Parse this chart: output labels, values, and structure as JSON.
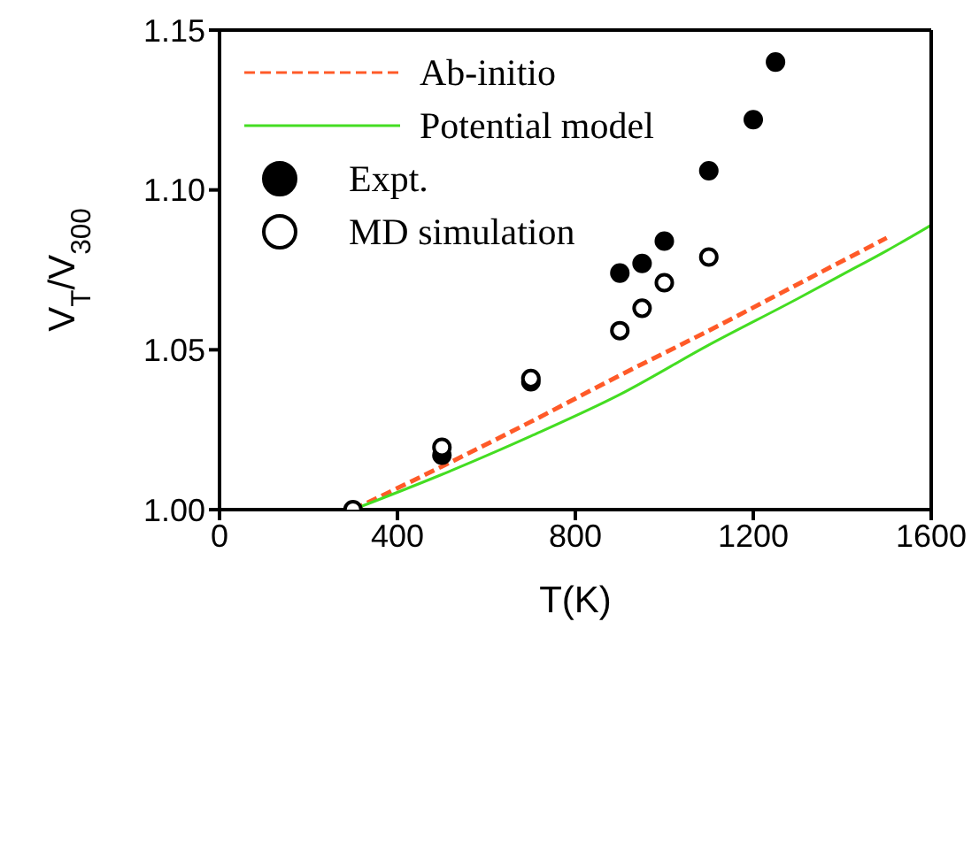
{
  "chart_data": {
    "type": "line",
    "xlabel": "T(K)",
    "ylabel": "V$_{T}$/V$_{300}$",
    "xlim": [
      0,
      1600
    ],
    "xticks": [
      0,
      400,
      800,
      1200,
      1600
    ],
    "ylim": [
      1.0,
      1.15
    ],
    "yticks": [
      {
        "value": 1.0,
        "label": "1.00"
      },
      {
        "value": 1.05,
        "label": "1.05"
      },
      {
        "value": 1.1,
        "label": "1.10"
      },
      {
        "value": 1.15,
        "label": "1.15"
      }
    ],
    "grid": false,
    "legend": "top left",
    "series": [
      {
        "name": "Ab-initio",
        "line_style": "dashed",
        "marker": "none",
        "color": "#ff5a28",
        "x": [
          300,
          500,
          700,
          900,
          1100,
          1300,
          1500
        ],
        "values": [
          1.0,
          1.0135,
          1.0275,
          1.042,
          1.056,
          1.0705,
          1.085
        ]
      },
      {
        "name": "Potential model",
        "line_style": "solid",
        "marker": "none",
        "color": "#44dd22",
        "x": [
          300,
          500,
          700,
          900,
          1100,
          1300,
          1400,
          1500,
          1600
        ],
        "values": [
          1.0,
          1.011,
          1.023,
          1.036,
          1.0515,
          1.066,
          1.0735,
          1.081,
          1.089
        ]
      },
      {
        "name": "Expt.",
        "type": "scatter",
        "marker": "circle",
        "color": "#000000",
        "x": [
          500,
          700,
          900,
          950,
          1000,
          1100,
          1200,
          1250
        ],
        "values": [
          1.017,
          1.04,
          1.074,
          1.077,
          1.084,
          1.106,
          1.122,
          1.14
        ]
      },
      {
        "name": "MD simulation",
        "type": "scatter",
        "marker": "circle",
        "color": "#ffffff",
        "x": [
          300,
          500,
          700,
          900,
          950,
          1000,
          1100
        ],
        "values": [
          1.0,
          1.0195,
          1.041,
          1.056,
          1.063,
          1.071,
          1.079
        ]
      }
    ]
  }
}
